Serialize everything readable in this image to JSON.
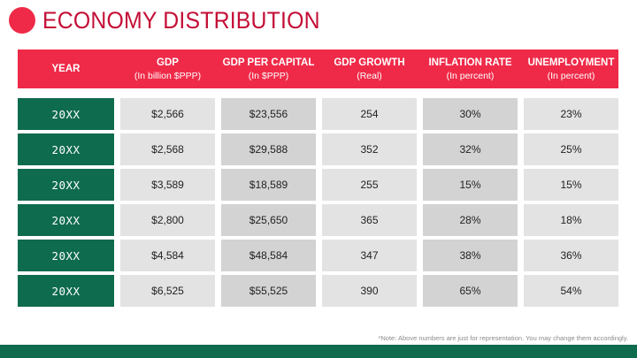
{
  "title": "ECONOMY DISTRIBUTION",
  "colors": {
    "accent_red": "#EF2A48",
    "title_red": "#C40E36",
    "green": "#0F6B4E"
  },
  "headers": [
    {
      "main": "YEAR",
      "sub": ""
    },
    {
      "main": "GDP",
      "sub": "(In billion $PPP)"
    },
    {
      "main": "GDP PER CAPITAL",
      "sub": "(In $PPP)"
    },
    {
      "main": "GDP GROWTH",
      "sub": "(Real)"
    },
    {
      "main": "INFLATION RATE",
      "sub": "(In percent)"
    },
    {
      "main": "UNEMPLOYMENT",
      "sub": "(In percent)"
    }
  ],
  "rows": [
    [
      "20XX",
      "$2,566",
      "$23,556",
      "254",
      "30%",
      "23%"
    ],
    [
      "20XX",
      "$2,568",
      "$29,588",
      "352",
      "32%",
      "25%"
    ],
    [
      "20XX",
      "$3,589",
      "$18,589",
      "255",
      "15%",
      "15%"
    ],
    [
      "20XX",
      "$2,800",
      "$25,650",
      "365",
      "28%",
      "18%"
    ],
    [
      "20XX",
      "$4,584",
      "$48,584",
      "347",
      "38%",
      "36%"
    ],
    [
      "20XX",
      "$6,525",
      "$55,525",
      "390",
      "65%",
      "54%"
    ]
  ],
  "note": "*Note: Above numbers are just for representation. You may change them accordingly."
}
